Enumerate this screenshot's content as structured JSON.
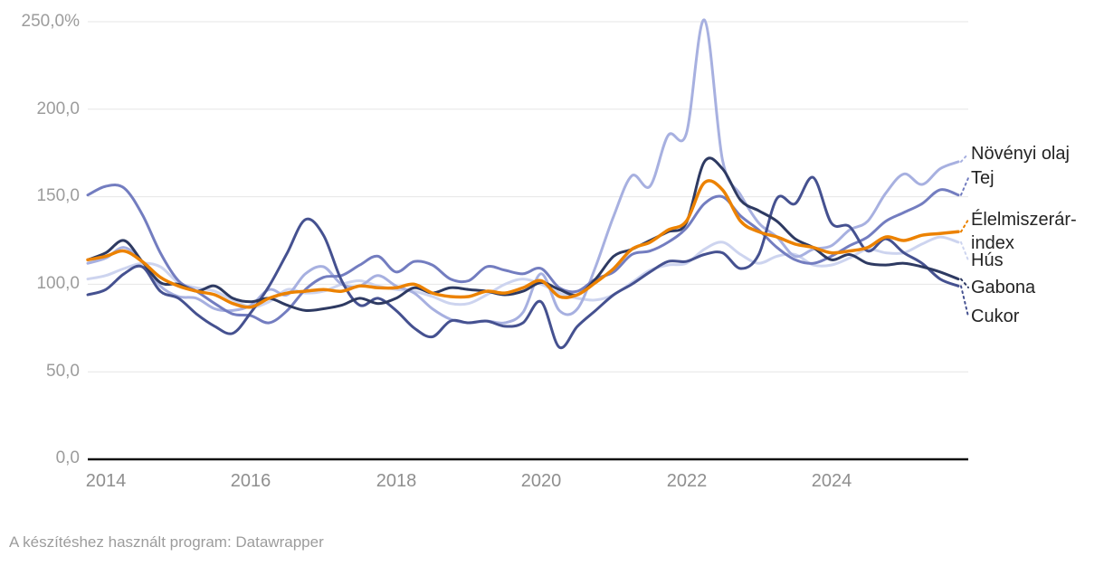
{
  "chart": {
    "footer": "A készítéshez használt program: Datawrapper",
    "y_axis": {
      "ticks": [
        "250,0%",
        "200,0",
        "150,0",
        "100,0",
        "50,0",
        "0,0"
      ],
      "values": [
        250,
        200,
        150,
        100,
        50,
        0
      ]
    },
    "x_axis": {
      "ticks": [
        "2014",
        "2016",
        "2018",
        "2020",
        "2022",
        "2024"
      ],
      "values": [
        2014,
        2016,
        2018,
        2020,
        2022,
        2024
      ]
    },
    "colors": {
      "grid": "#e6e6e6",
      "axis": "#111111",
      "tick_text": "#9c9c9c",
      "label_text": "#242424"
    }
  },
  "chart_data": {
    "type": "line",
    "title": "",
    "xlabel": "",
    "ylabel": "",
    "xlim": [
      2013.75,
      2025.85
    ],
    "ylim": [
      0,
      250
    ],
    "grid": "horizontal",
    "legend_position": "right-edge-labels",
    "x": [
      2013.75,
      2014,
      2014.25,
      2014.5,
      2014.75,
      2015,
      2015.25,
      2015.5,
      2015.75,
      2016,
      2016.25,
      2016.5,
      2016.75,
      2017,
      2017.25,
      2017.5,
      2017.75,
      2018,
      2018.25,
      2018.5,
      2018.75,
      2019,
      2019.25,
      2019.5,
      2019.75,
      2020,
      2020.25,
      2020.5,
      2020.75,
      2021,
      2021.25,
      2021.5,
      2021.75,
      2022,
      2022.25,
      2022.5,
      2022.75,
      2023,
      2023.25,
      2023.5,
      2023.75,
      2024,
      2024.25,
      2024.5,
      2024.75,
      2025,
      2025.25,
      2025.5,
      2025.75
    ],
    "series": [
      {
        "id": "vegoil",
        "name": "Növényi olaj",
        "color": "#a7b0e0",
        "values": [
          112,
          115,
          121,
          113,
          99,
          93,
          92,
          86,
          85,
          88,
          97,
          94,
          106,
          110,
          100,
          99,
          105,
          99,
          95,
          86,
          80,
          78,
          79,
          78,
          84,
          106,
          85,
          86,
          110,
          139,
          162,
          156,
          185,
          186,
          251,
          171,
          151,
          135,
          127,
          116,
          120,
          122,
          131,
          136,
          152,
          163,
          157,
          166,
          170
        ]
      },
      {
        "id": "tej",
        "name": "Tej",
        "color": "#737dc0",
        "values": [
          151,
          156,
          155,
          140,
          118,
          102,
          96,
          89,
          83,
          82,
          78,
          85,
          97,
          104,
          105,
          111,
          116,
          107,
          113,
          111,
          103,
          102,
          110,
          108,
          106,
          109,
          98,
          96,
          103,
          107,
          117,
          119,
          124,
          132,
          146,
          150,
          139,
          131,
          121,
          114,
          112,
          116,
          122,
          127,
          136,
          141,
          146,
          154,
          151
        ]
      },
      {
        "id": "index",
        "name": "Élelmiszerár-index",
        "color": "#ec8200",
        "values": [
          114,
          116,
          119,
          113,
          104,
          99,
          96,
          94,
          89,
          87,
          92,
          95,
          96,
          97,
          96,
          99,
          98,
          98,
          100,
          95,
          93,
          93,
          96,
          95,
          98,
          102,
          93,
          94,
          101,
          109,
          120,
          124,
          131,
          136,
          158,
          154,
          136,
          130,
          127,
          123,
          121,
          118,
          119,
          121,
          127,
          125,
          128,
          129,
          130
        ]
      },
      {
        "id": "hus",
        "name": "Hús",
        "color": "#cdd4ef",
        "values": [
          103,
          105,
          109,
          112,
          110,
          101,
          98,
          96,
          91,
          87,
          90,
          97,
          95,
          96,
          100,
          102,
          99,
          97,
          96,
          93,
          89,
          89,
          94,
          100,
          103,
          100,
          95,
          92,
          91,
          94,
          101,
          108,
          111,
          112,
          120,
          124,
          117,
          112,
          116,
          117,
          111,
          111,
          115,
          120,
          118,
          118,
          123,
          127,
          124
        ]
      },
      {
        "id": "gabona",
        "name": "Gabona",
        "color": "#2e3a62",
        "values": [
          114,
          118,
          125,
          113,
          101,
          100,
          96,
          99,
          92,
          90,
          92,
          88,
          85,
          86,
          88,
          92,
          89,
          92,
          98,
          95,
          98,
          97,
          96,
          94,
          96,
          101,
          97,
          94,
          103,
          116,
          120,
          125,
          130,
          135,
          170,
          166,
          148,
          142,
          136,
          126,
          121,
          114,
          117,
          112,
          111,
          112,
          110,
          107,
          103
        ]
      },
      {
        "id": "cukor",
        "name": "Cukor",
        "color": "#455190",
        "values": [
          94,
          97,
          106,
          110,
          96,
          92,
          83,
          76,
          72,
          84,
          99,
          118,
          137,
          128,
          102,
          88,
          92,
          85,
          75,
          70,
          79,
          78,
          79,
          76,
          78,
          90,
          64,
          76,
          85,
          94,
          100,
          107,
          113,
          113,
          117,
          118,
          109,
          117,
          149,
          146,
          161,
          135,
          133,
          119,
          126,
          118,
          112,
          103,
          99
        ]
      }
    ]
  }
}
